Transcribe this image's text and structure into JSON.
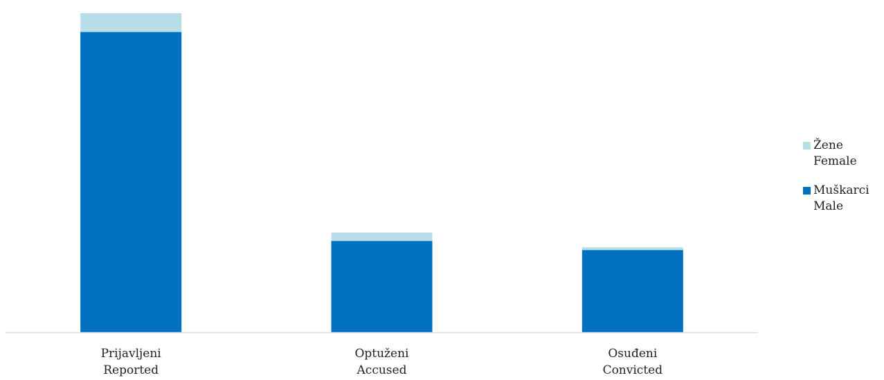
{
  "chart_data": {
    "type": "bar",
    "stacked": true,
    "categories": [
      [
        "Prijavljeni",
        "Reported"
      ],
      [
        "Optuženi",
        "Accused"
      ],
      [
        "Osuđeni",
        "Convicted"
      ]
    ],
    "series": [
      {
        "name": [
          "Muškarci",
          "Male"
        ],
        "color": "#0070c0",
        "values": [
          431,
          131,
          118
        ]
      },
      {
        "name": [
          "Žene",
          "Female"
        ],
        "color": "#b6dde8",
        "values": [
          27,
          12,
          4
        ]
      }
    ],
    "legend_order": [
      1,
      0
    ],
    "legend_position": "right",
    "grid": false,
    "ylim": [
      0,
      460
    ]
  }
}
